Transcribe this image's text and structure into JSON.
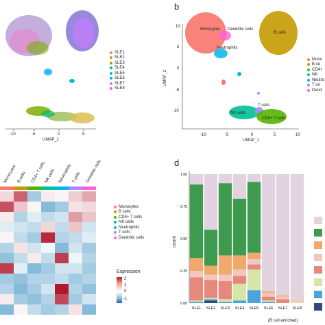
{
  "panel_a": {
    "axis": {
      "xlabel": "UMAP_1",
      "x_ticks": [
        "-10",
        "-5",
        "0",
        "5"
      ]
    },
    "legend": [
      "SLE1",
      "SLE2",
      "SLE3",
      "SLE4",
      "SLE5",
      "SLE6",
      "SLE7",
      "SLE8"
    ],
    "legend_colors": [
      "#f8766d",
      "#cd9600",
      "#7cae00",
      "#00be67",
      "#00bfc4",
      "#00a9ff",
      "#c77cff",
      "#ff61cc"
    ]
  },
  "panel_b": {
    "tag": "b",
    "axis": {
      "xlabel": "UMAP_1",
      "ylabel": "UMAP_2",
      "x_ticks": [
        "-10",
        "-5",
        "0",
        "5",
        "10"
      ],
      "y_ticks": [
        "10",
        "5",
        "0",
        "-5",
        "-10"
      ]
    },
    "cluster_labels": {
      "monocytes": "Monocytes",
      "dendritic": "Dendritic cells",
      "bcells": "B cells",
      "neutrophils": "Neutrophils",
      "nk": "NK cells",
      "tcells": "T cells",
      "cd4": "CD4+ T cells"
    },
    "legend": [
      "Mono",
      "B ce",
      "CD4+",
      "NK",
      "Neutro",
      "T ce",
      "Dend"
    ],
    "legend_colors": [
      "#f8766d",
      "#c49a00",
      "#53b400",
      "#00c094",
      "#00b6eb",
      "#a58aff",
      "#fb61d7"
    ]
  },
  "panel_c": {
    "columns": [
      "Monocytes",
      "B cells",
      "CD4+ T cells",
      "NK cells",
      "Neutrophils",
      "T cells",
      "Dendritic cells"
    ],
    "column_colors": [
      "#f8766d",
      "#c49a00",
      "#53b400",
      "#00c094",
      "#00b6eb",
      "#a58aff",
      "#fb61d7"
    ],
    "legend": [
      "Monocytes",
      "B cells",
      "CD4+ T cells",
      "NK cells",
      "Neutrophils",
      "T cells",
      "Dendritic cells"
    ],
    "colorbar": {
      "title": "Expression",
      "ticks": [
        "2",
        "1",
        "0",
        "-1"
      ]
    },
    "grid": [
      [
        0.4,
        1.6,
        -0.6,
        0.2,
        0.1,
        0.5,
        0.9
      ],
      [
        1.8,
        0.6,
        0.1,
        -0.8,
        -0.6,
        0.3,
        0.4
      ],
      [
        0.2,
        -0.5,
        -0.2,
        -0.4,
        -0.3,
        1.0,
        0.6
      ],
      [
        -0.2,
        -0.3,
        -0.4,
        0.4,
        -0.4,
        0.6,
        -0.3
      ],
      [
        0.1,
        -0.4,
        -0.6,
        2.2,
        -0.5,
        -0.4,
        -0.2
      ],
      [
        -0.5,
        0.3,
        -0.3,
        -0.1,
        -0.8,
        -0.3,
        -0.6
      ],
      [
        -0.7,
        -0.4,
        0.2,
        -0.4,
        2.0,
        -0.1,
        -0.5
      ],
      [
        2.0,
        -0.2,
        -0.8,
        -0.6,
        -0.3,
        -0.3,
        -0.6
      ],
      [
        -0.6,
        -0.7,
        -0.5,
        -0.5,
        -0.4,
        -0.6,
        -0.5
      ],
      [
        -0.5,
        -0.8,
        -0.6,
        -0.3,
        2.4,
        -0.5,
        -0.7
      ],
      [
        0.2,
        -0.6,
        -0.7,
        -0.5,
        1.9,
        -0.6,
        -0.3
      ],
      [
        -0.8,
        0.1,
        -0.4,
        -0.6,
        -0.5,
        0.3,
        -0.8
      ]
    ]
  },
  "panel_d": {
    "tag": "d",
    "ylabel": "count",
    "annotation": "(B cell enriched)",
    "chart_data": {
      "type": "bar",
      "stacked": true,
      "categories": [
        "SLE1",
        "SLE2",
        "SLE3",
        "SLE4",
        "SLE5",
        "SLE6",
        "SLE7",
        "SLE8"
      ],
      "y_ticks": [
        "1.00",
        "0.75",
        "0.50",
        "0.25",
        "0.00"
      ],
      "ylim": [
        0,
        1
      ],
      "series": [
        {
          "color": "#2f4b7c",
          "values": [
            0.0,
            0.02,
            0.0,
            0.0,
            0.0,
            0.0,
            0.0,
            0.0
          ]
        },
        {
          "color": "#4aa3d9",
          "values": [
            0.01,
            0.01,
            0.01,
            0.02,
            0.1,
            0.01,
            0.0,
            0.0
          ]
        },
        {
          "color": "#d6e6a8",
          "values": [
            0.01,
            0.01,
            0.02,
            0.13,
            0.16,
            0.01,
            0.0,
            0.01
          ]
        },
        {
          "color": "#e8877c",
          "values": [
            0.18,
            0.14,
            0.14,
            0.06,
            0.04,
            0.03,
            0.03,
            0.0
          ]
        },
        {
          "color": "#f2c7c0",
          "values": [
            0.05,
            0.04,
            0.05,
            0.05,
            0.04,
            0.03,
            0.02,
            0.02
          ]
        },
        {
          "color": "#f0a96a",
          "values": [
            0.1,
            0.07,
            0.15,
            0.11,
            0.05,
            0.01,
            0.01,
            0.0
          ]
        },
        {
          "color": "#3d9a4e",
          "values": [
            0.57,
            0.28,
            0.56,
            0.44,
            0.55,
            0.0,
            0.0,
            0.0
          ]
        },
        {
          "color": "#e3d3e0",
          "values": [
            0.08,
            0.43,
            0.07,
            0.19,
            0.06,
            0.91,
            0.94,
            0.97
          ]
        }
      ],
      "legend_colors": [
        "#e3d3e0",
        "#3d9a4e",
        "#f0a96a",
        "#f2c7c0",
        "#e8877c",
        "#d6e6a8",
        "#4aa3d9",
        "#2f4b7c"
      ]
    }
  }
}
